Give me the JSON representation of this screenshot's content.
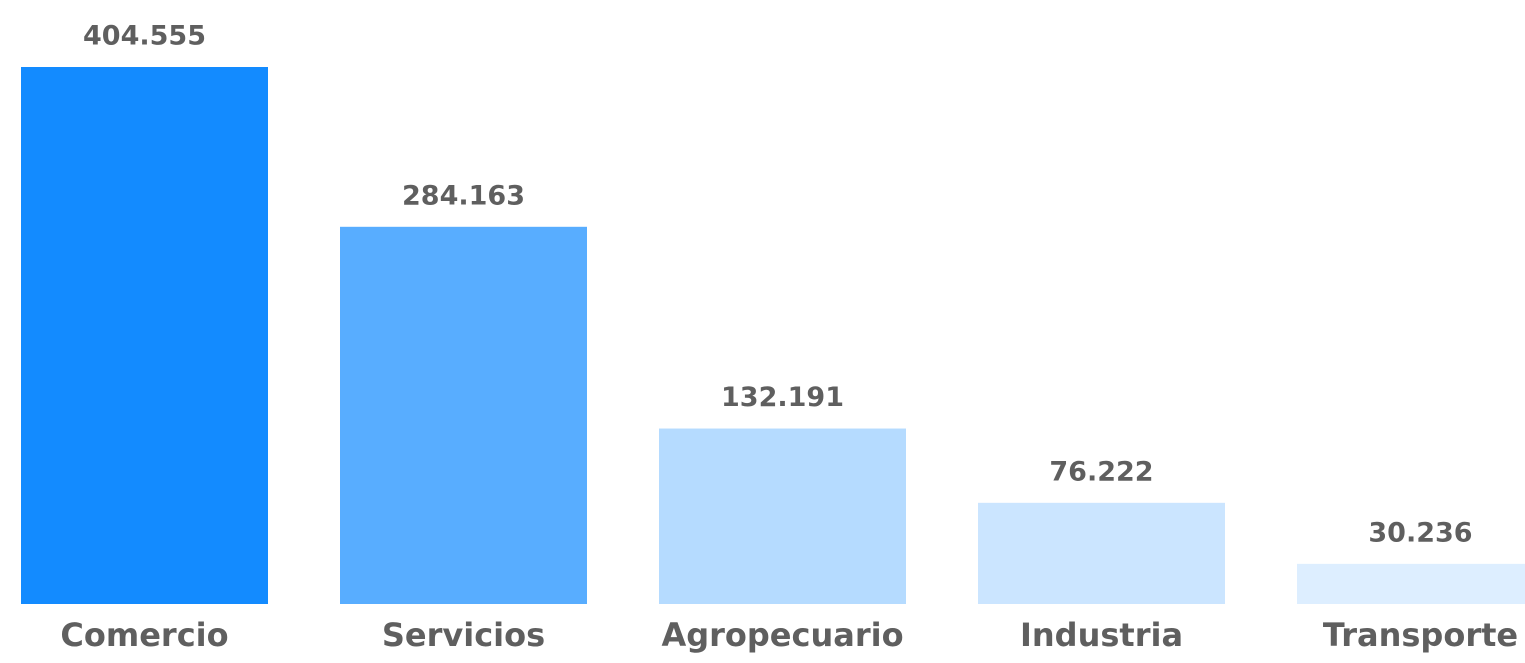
{
  "chart_data": {
    "type": "bar",
    "categories": [
      "Comercio",
      "Servicios",
      "Agropecuario",
      "Industria",
      "Transporte"
    ],
    "values": [
      404555,
      284163,
      132191,
      76222,
      30236
    ],
    "value_labels": [
      "404.555",
      "284.163",
      "132.191",
      "76.222",
      "30.236"
    ],
    "colors": [
      "#138bff",
      "#58adff",
      "#b5dbff",
      "#cbe5ff",
      "#ddeeff"
    ]
  }
}
